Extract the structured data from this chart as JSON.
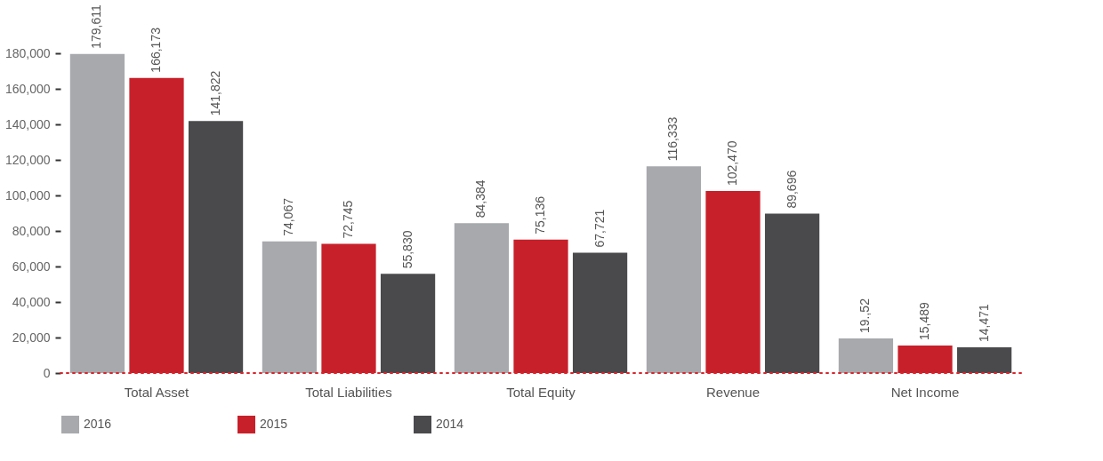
{
  "chart_data": {
    "type": "bar",
    "categories": [
      "Total Asset",
      "Total Liabilities",
      "Total Equity",
      "Revenue",
      "Net Income"
    ],
    "series": [
      {
        "name": "2016",
        "color": "#a7a9ac",
        "values": [
          179611,
          74067,
          84384,
          116333,
          19500
        ],
        "value_labels": [
          "179,611",
          "74,067",
          "84,384",
          "116,333",
          "19.,52"
        ]
      },
      {
        "name": "2015",
        "color": "#c8202a",
        "values": [
          166173,
          72745,
          75136,
          102470,
          15489
        ],
        "value_labels": [
          "166,173",
          "72,745",
          "75,136",
          "102,470",
          "15,489"
        ]
      },
      {
        "name": "2014",
        "color": "#4a4a4d",
        "values": [
          141822,
          55830,
          67721,
          89696,
          14471
        ],
        "value_labels": [
          "141,822",
          "55,830",
          "67,721",
          "89,696",
          "14,471"
        ]
      }
    ],
    "ylim": [
      0,
      180000
    ],
    "yticks": [
      0,
      {
        "value": 20000,
        "label": "20,000"
      },
      {
        "value": 40000,
        "label": "40,000"
      },
      {
        "value": 60000,
        "label": "60,000"
      },
      {
        "value": 80000,
        "label": "80,000"
      },
      {
        "value": 100000,
        "label": "100,000"
      },
      {
        "value": 120000,
        "label": "120,000"
      },
      {
        "value": 140000,
        "label": "140,000"
      },
      {
        "value": 160000,
        "label": "160,000"
      },
      {
        "value": 180000,
        "label": "180,000"
      }
    ],
    "ref_lines": [
      {
        "axis": "y",
        "value": 0,
        "label": null,
        "color": "#d7262d",
        "line_style": "dotted"
      }
    ],
    "grid": false,
    "legend": "bottom"
  }
}
